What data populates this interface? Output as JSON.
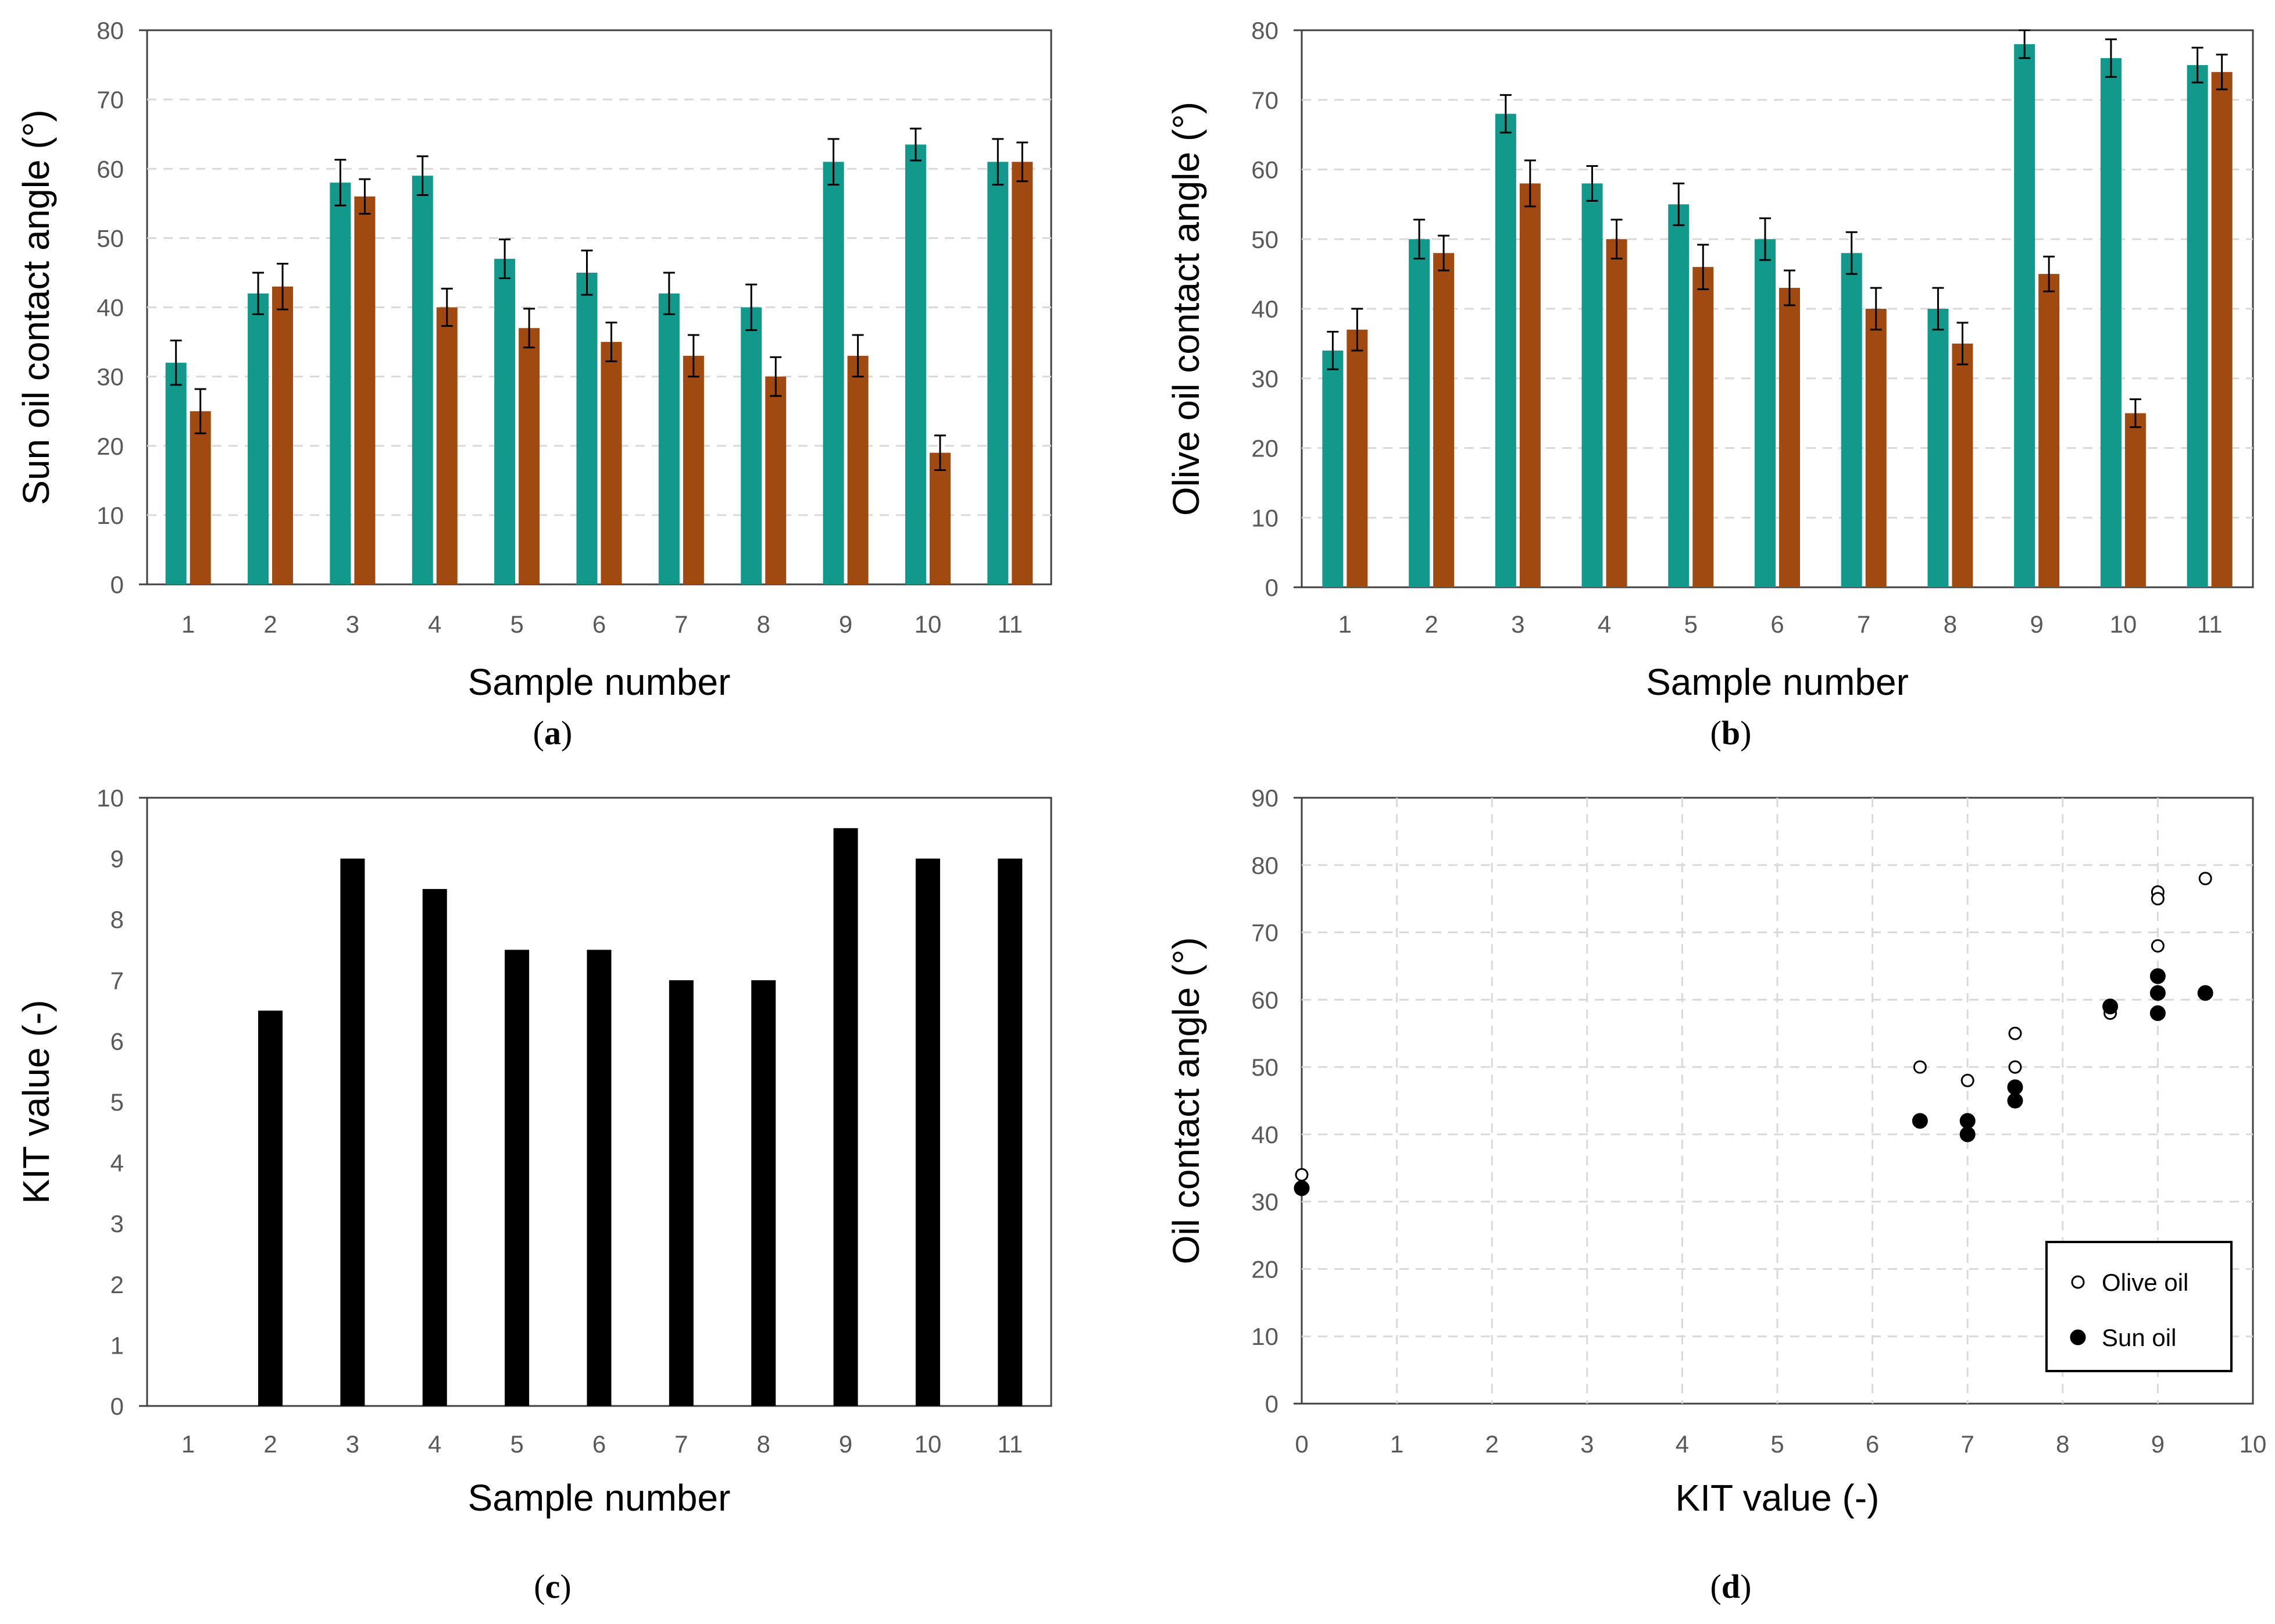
{
  "colors": {
    "teal": "#13988C",
    "rust": "#A04A11",
    "black": "#000000",
    "grid": "#D9D9D9",
    "tick_text": "#595959"
  },
  "chart_data": [
    {
      "id": "a",
      "type": "bar",
      "panel_label": "a",
      "xlabel": "Sample number",
      "ylabel": "Sun oil contact angle (°)",
      "categories": [
        "1",
        "2",
        "3",
        "4",
        "5",
        "6",
        "7",
        "8",
        "9",
        "10",
        "11"
      ],
      "ylim": [
        0,
        80
      ],
      "yticks": [
        0,
        10,
        20,
        30,
        40,
        50,
        60,
        70,
        80
      ],
      "grid": "horizontal-dashed",
      "series": [
        {
          "color": "#13988C",
          "values": [
            32,
            42,
            58,
            59,
            47,
            45,
            42,
            40,
            61,
            63.5,
            61
          ],
          "errors": [
            3.2,
            3,
            3.3,
            2.8,
            2.8,
            3.2,
            3,
            3.3,
            3.3,
            2.3,
            3.3
          ]
        },
        {
          "color": "#A04A11",
          "values": [
            25,
            43,
            56,
            40,
            37,
            35,
            33,
            30,
            33,
            19,
            61
          ],
          "errors": [
            3.2,
            3.3,
            2.5,
            2.7,
            2.8,
            2.8,
            3,
            2.8,
            3,
            2.5,
            2.8
          ]
        }
      ]
    },
    {
      "id": "b",
      "type": "bar",
      "panel_label": "b",
      "xlabel": "Sample number",
      "ylabel": "Olive oil contact angle (°)",
      "categories": [
        "1",
        "2",
        "3",
        "4",
        "5",
        "6",
        "7",
        "8",
        "9",
        "10",
        "11"
      ],
      "ylim": [
        0,
        80
      ],
      "yticks": [
        0,
        10,
        20,
        30,
        40,
        50,
        60,
        70,
        80
      ],
      "grid": "horizontal-dashed",
      "series": [
        {
          "color": "#13988C",
          "values": [
            34,
            50,
            68,
            58,
            55,
            50,
            48,
            40,
            78,
            76,
            75
          ],
          "errors": [
            2.7,
            2.8,
            2.7,
            2.5,
            3,
            3,
            3,
            3,
            2,
            2.7,
            2.5
          ]
        },
        {
          "color": "#A04A11",
          "values": [
            37,
            48,
            58,
            50,
            46,
            43,
            40,
            35,
            45,
            25,
            74
          ],
          "errors": [
            3,
            2.5,
            3.3,
            2.8,
            3.2,
            2.5,
            3,
            3,
            2.5,
            2,
            2.5
          ]
        }
      ]
    },
    {
      "id": "c",
      "type": "bar",
      "panel_label": "c",
      "xlabel": "Sample number",
      "ylabel": "KIT value (-)",
      "categories": [
        "1",
        "2",
        "3",
        "4",
        "5",
        "6",
        "7",
        "8",
        "9",
        "10",
        "11"
      ],
      "ylim": [
        0,
        10
      ],
      "yticks": [
        0,
        1,
        2,
        3,
        4,
        5,
        6,
        7,
        8,
        9,
        10
      ],
      "grid": "none",
      "series": [
        {
          "color": "#000000",
          "values": [
            0,
            6.5,
            9,
            8.5,
            7.5,
            7.5,
            7,
            7,
            9.5,
            9,
            9
          ]
        }
      ]
    },
    {
      "id": "d",
      "type": "scatter",
      "panel_label": "d",
      "xlabel": "KIT value (-)",
      "ylabel": "Oil contact angle (°)",
      "xlim": [
        0,
        10
      ],
      "ylim": [
        0,
        90
      ],
      "xticks": [
        0,
        1,
        2,
        3,
        4,
        5,
        6,
        7,
        8,
        9,
        10
      ],
      "yticks": [
        0,
        10,
        20,
        30,
        40,
        50,
        60,
        70,
        80,
        90
      ],
      "grid": "both-dashed",
      "legend_position": "bottom-right",
      "series": [
        {
          "name": "Olive oil",
          "marker": "open-circle",
          "x": [
            0,
            6.5,
            9,
            8.5,
            7.5,
            7.5,
            7,
            7,
            9.5,
            9,
            9
          ],
          "y": [
            34,
            50,
            68,
            58,
            55,
            50,
            48,
            40,
            78,
            76,
            75
          ]
        },
        {
          "name": "Sun oil",
          "marker": "filled-circle",
          "x": [
            0,
            6.5,
            9,
            8.5,
            7.5,
            7.5,
            7,
            7,
            9.5,
            9,
            9
          ],
          "y": [
            32,
            42,
            58,
            59,
            47,
            45,
            42,
            40,
            61,
            63.5,
            61
          ]
        }
      ]
    }
  ]
}
